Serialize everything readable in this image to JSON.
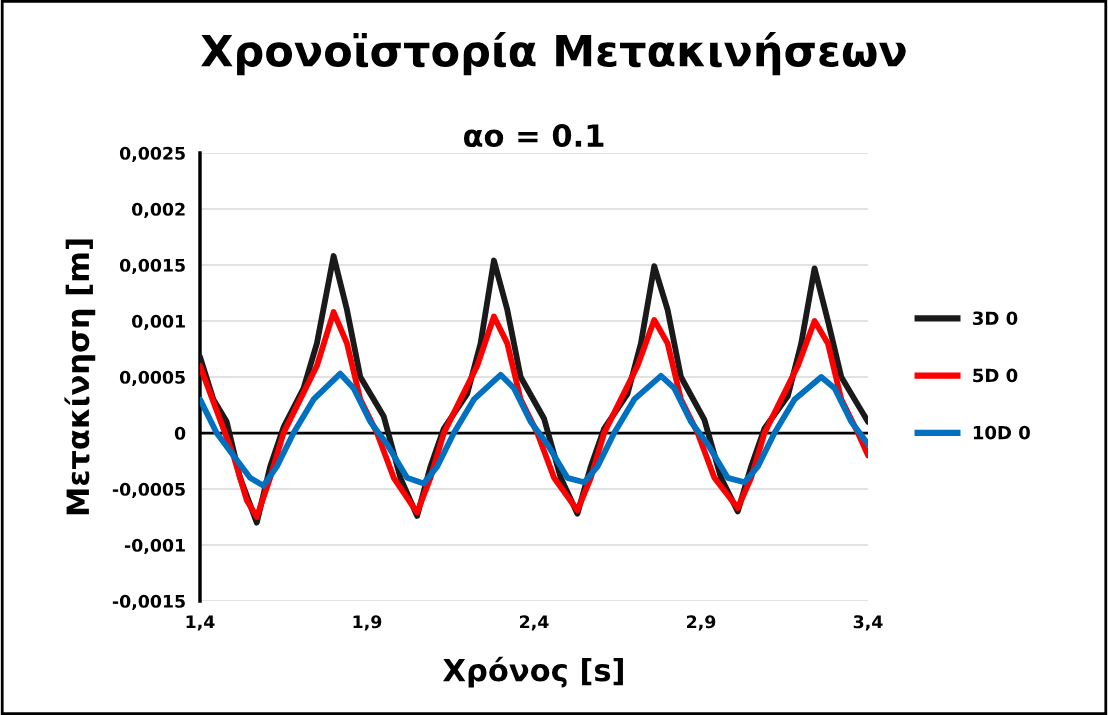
{
  "chart_data": {
    "type": "line",
    "title": "Χρονοϊστορία Μετακινήσεων",
    "subtitle": "αo = 0.1",
    "xlabel": "Χρόνος [s]",
    "ylabel": "Μετακίνηση [m]",
    "xlim": [
      1.4,
      3.4
    ],
    "xticks": [
      {
        "value": 1.4,
        "label": "1,4"
      },
      {
        "value": 1.9,
        "label": "1,9"
      },
      {
        "value": 2.4,
        "label": "2,4"
      },
      {
        "value": 2.9,
        "label": "2,9"
      },
      {
        "value": 3.4,
        "label": "3,4"
      }
    ],
    "ylim": [
      -0.0015,
      0.0025
    ],
    "yticks": [
      {
        "value": -0.0015,
        "label": "-0,0015"
      },
      {
        "value": -0.001,
        "label": "-0,001"
      },
      {
        "value": -0.0005,
        "label": "-0,0005"
      },
      0,
      {
        "value": 0.0005,
        "label": "0,0005"
      },
      {
        "value": 0.001,
        "label": "0,001"
      },
      {
        "value": 0.0015,
        "label": "0,0015"
      },
      {
        "value": 0.002,
        "label": "0,002"
      },
      {
        "value": 0.0025,
        "label": "0,0025"
      }
    ],
    "grid": "y",
    "legend": "right",
    "line_style": "solid",
    "marker": "none",
    "ref_lines": [
      {
        "axis": "y",
        "value": 0,
        "color": "#000000"
      }
    ],
    "series": [
      {
        "name": "3D 0",
        "color": "#1a1a1a",
        "x": [
          1.4,
          1.44,
          1.48,
          1.52,
          1.57,
          1.61,
          1.65,
          1.71,
          1.75,
          1.8,
          1.84,
          1.88,
          1.95,
          2.0,
          2.05,
          2.09,
          2.13,
          2.2,
          2.24,
          2.28,
          2.32,
          2.36,
          2.43,
          2.48,
          2.53,
          2.57,
          2.61,
          2.68,
          2.72,
          2.76,
          2.8,
          2.84,
          2.91,
          2.96,
          3.01,
          3.05,
          3.09,
          3.16,
          3.2,
          3.24,
          3.28,
          3.32,
          3.38,
          3.4
        ],
        "values": [
          0.00068,
          0.0003,
          0.0001,
          -0.0004,
          -0.0008,
          -0.0003,
          5e-05,
          0.0004,
          0.0008,
          0.00158,
          0.0011,
          0.0005,
          0.00015,
          -0.0004,
          -0.00074,
          -0.0003,
          4e-05,
          0.00035,
          0.0008,
          0.00154,
          0.0011,
          0.0005,
          0.00013,
          -0.0004,
          -0.00072,
          -0.0003,
          4e-05,
          0.00035,
          0.0008,
          0.00149,
          0.0011,
          0.0005,
          0.00012,
          -0.0004,
          -0.0007,
          -0.0003,
          4e-05,
          0.00033,
          0.0008,
          0.00147,
          0.001,
          0.0005,
          0.0002,
          0.0001
        ]
      },
      {
        "name": "5D 0",
        "color": "#ff0000",
        "x": [
          1.4,
          1.45,
          1.5,
          1.54,
          1.57,
          1.61,
          1.65,
          1.7,
          1.75,
          1.8,
          1.84,
          1.88,
          1.93,
          1.98,
          2.05,
          2.09,
          2.13,
          2.18,
          2.23,
          2.28,
          2.32,
          2.36,
          2.41,
          2.46,
          2.53,
          2.57,
          2.61,
          2.66,
          2.71,
          2.76,
          2.8,
          2.84,
          2.89,
          2.94,
          3.01,
          3.05,
          3.09,
          3.14,
          3.19,
          3.24,
          3.28,
          3.32,
          3.37,
          3.4
        ],
        "values": [
          0.0006,
          0.0002,
          -0.0002,
          -0.0006,
          -0.00075,
          -0.0004,
          0.0,
          0.0003,
          0.0006,
          0.00108,
          0.0008,
          0.0003,
          0.0,
          -0.0004,
          -0.00071,
          -0.0004,
          0.0,
          0.0003,
          0.0006,
          0.00104,
          0.0008,
          0.0003,
          0.0,
          -0.0004,
          -0.00069,
          -0.0004,
          0.0,
          0.0003,
          0.0006,
          0.00101,
          0.0008,
          0.0003,
          0.0,
          -0.0004,
          -0.00067,
          -0.0004,
          0.0,
          0.0003,
          0.0006,
          0.001,
          0.0008,
          0.0003,
          0.0,
          -0.0002
        ]
      },
      {
        "name": "10D 0",
        "color": "#0070c0",
        "x": [
          1.4,
          1.45,
          1.5,
          1.55,
          1.59,
          1.63,
          1.68,
          1.74,
          1.82,
          1.86,
          1.91,
          1.96,
          2.02,
          2.07,
          2.11,
          2.16,
          2.22,
          2.3,
          2.34,
          2.39,
          2.44,
          2.5,
          2.55,
          2.59,
          2.64,
          2.7,
          2.78,
          2.82,
          2.87,
          2.92,
          2.98,
          3.03,
          3.07,
          3.12,
          3.18,
          3.26,
          3.3,
          3.35,
          3.4
        ],
        "values": [
          0.0003,
          0.0,
          -0.0002,
          -0.0004,
          -0.00047,
          -0.0003,
          0.0,
          0.0003,
          0.00053,
          0.0004,
          0.0001,
          -0.0001,
          -0.0004,
          -0.00045,
          -0.0003,
          0.0,
          0.0003,
          0.00052,
          0.0004,
          0.0001,
          -0.0001,
          -0.0004,
          -0.00044,
          -0.0003,
          0.0,
          0.0003,
          0.00051,
          0.0004,
          0.0001,
          -0.0001,
          -0.0004,
          -0.00044,
          -0.0003,
          0.0,
          0.0003,
          0.0005,
          0.0004,
          0.0001,
          -0.0001
        ]
      }
    ]
  }
}
